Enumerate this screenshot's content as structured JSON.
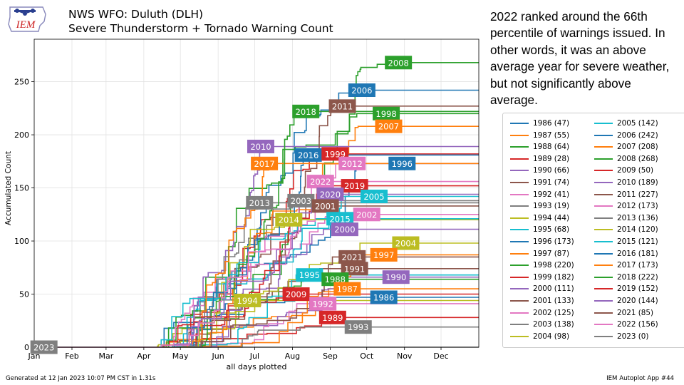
{
  "header": {
    "logo_text": "IEM",
    "title_line1": "NWS WFO: Duluth (DLH)",
    "title_line2": "Severe Thunderstorm + Tornado Warning Count"
  },
  "commentary": "2022 ranked around the 66th percentile of warnings issued. In other words, it was an above average year for severe weather, but not significantly above average.",
  "footer": {
    "generated": "Generated at 12 Jan 2023 10:07 PM CST in 1.31s",
    "app": "IEM Autoplot App #44"
  },
  "chart_data": {
    "type": "line",
    "title": "NWS WFO: Duluth (DLH) Severe Thunderstorm + Tornado Warning Count",
    "xlabel": "all days plotted",
    "ylabel": "Accumulated Count",
    "x_ticks": [
      "Jan",
      "Feb",
      "Mar",
      "Apr",
      "May",
      "Jun",
      "Jul",
      "Aug",
      "Sep",
      "Oct",
      "Nov",
      "Dec"
    ],
    "y_ticks": [
      0,
      50,
      100,
      150,
      200,
      250
    ],
    "ylim": [
      0,
      290
    ],
    "xlim_doy": [
      1,
      366
    ],
    "grid": true,
    "legend_position": "right",
    "series": [
      {
        "year": 1986,
        "label": "1986 (47)",
        "total": 47,
        "color": "#1f77b4",
        "end_doy": 230
      },
      {
        "year": 1987,
        "label": "1987 (55)",
        "total": 55,
        "color": "#ff7f0e",
        "end_doy": 244
      },
      {
        "year": 1988,
        "label": "1988 (64)",
        "total": 64,
        "color": "#2ca02c",
        "end_doy": 240
      },
      {
        "year": 1989,
        "label": "1989 (28)",
        "total": 28,
        "color": "#d62728",
        "end_doy": 250
      },
      {
        "year": 1990,
        "label": "1990 (66)",
        "total": 66,
        "color": "#9467bd",
        "end_doy": 268
      },
      {
        "year": 1991,
        "label": "1991 (74)",
        "total": 74,
        "color": "#8c564b",
        "end_doy": 236
      },
      {
        "year": 1992,
        "label": "1992 (41)",
        "total": 41,
        "color": "#e377c2",
        "end_doy": 230
      },
      {
        "year": 1993,
        "label": "1993 (19)",
        "total": 19,
        "color": "#7f7f7f",
        "end_doy": 258
      },
      {
        "year": 1994,
        "label": "1994 (44)",
        "total": 44,
        "color": "#bcbd22",
        "end_doy": 175
      },
      {
        "year": 1995,
        "label": "1995 (68)",
        "total": 68,
        "color": "#17becf",
        "end_doy": 222
      },
      {
        "year": 1996,
        "label": "1996 (173)",
        "total": 173,
        "color": "#1f77b4",
        "end_doy": 268
      },
      {
        "year": 1997,
        "label": "1997 (87)",
        "total": 87,
        "color": "#ff7f0e",
        "end_doy": 277
      },
      {
        "year": 1998,
        "label": "1998 (220)",
        "total": 220,
        "color": "#2ca02c",
        "end_doy": 268
      },
      {
        "year": 1999,
        "label": "1999 (182)",
        "total": 182,
        "color": "#d62728",
        "end_doy": 240
      },
      {
        "year": 2000,
        "label": "2000 (111)",
        "total": 111,
        "color": "#9467bd",
        "end_doy": 240
      },
      {
        "year": 2001,
        "label": "2001 (133)",
        "total": 133,
        "color": "#8c564b",
        "end_doy": 228
      },
      {
        "year": 2002,
        "label": "2002 (125)",
        "total": 125,
        "color": "#e377c2",
        "end_doy": 258
      },
      {
        "year": 2003,
        "label": "2003 (138)",
        "total": 138,
        "color": "#7f7f7f",
        "end_doy": 222
      },
      {
        "year": 2004,
        "label": "2004 (98)",
        "total": 98,
        "color": "#bcbd22",
        "end_doy": 285
      },
      {
        "year": 2005,
        "label": "2005 (142)",
        "total": 142,
        "color": "#17becf",
        "end_doy": 258
      },
      {
        "year": 2006,
        "label": "2006 (242)",
        "total": 242,
        "color": "#1f77b4",
        "end_doy": 262
      },
      {
        "year": 2007,
        "label": "2007 (208)",
        "total": 208,
        "color": "#ff7f0e",
        "end_doy": 270
      },
      {
        "year": 2008,
        "label": "2008 (268)",
        "total": 268,
        "color": "#2ca02c",
        "end_doy": 296
      },
      {
        "year": 2009,
        "label": "2009 (50)",
        "total": 50,
        "color": "#d62728",
        "end_doy": 210
      },
      {
        "year": 2010,
        "label": "2010 (189)",
        "total": 189,
        "color": "#9467bd",
        "end_doy": 188
      },
      {
        "year": 2011,
        "label": "2011 (227)",
        "total": 227,
        "color": "#8c564b",
        "end_doy": 250
      },
      {
        "year": 2012,
        "label": "2012 (173)",
        "total": 173,
        "color": "#e377c2",
        "end_doy": 256
      },
      {
        "year": 2013,
        "label": "2013 (136)",
        "total": 136,
        "color": "#7f7f7f",
        "end_doy": 186
      },
      {
        "year": 2014,
        "label": "2014 (120)",
        "total": 120,
        "color": "#bcbd22",
        "end_doy": 210
      },
      {
        "year": 2015,
        "label": "2015 (121)",
        "total": 121,
        "color": "#17becf",
        "end_doy": 236
      },
      {
        "year": 2016,
        "label": "2016 (181)",
        "total": 181,
        "color": "#1f77b4",
        "end_doy": 222
      },
      {
        "year": 2017,
        "label": "2017 (173)",
        "total": 173,
        "color": "#ff7f0e",
        "end_doy": 196
      },
      {
        "year": 2018,
        "label": "2018 (222)",
        "total": 222,
        "color": "#2ca02c",
        "end_doy": 216
      },
      {
        "year": 2019,
        "label": "2019 (152)",
        "total": 152,
        "color": "#d62728",
        "end_doy": 244
      },
      {
        "year": 2020,
        "label": "2020 (144)",
        "total": 144,
        "color": "#9467bd",
        "end_doy": 236
      },
      {
        "year": 2021,
        "label": "2021 (85)",
        "total": 85,
        "color": "#8c564b",
        "end_doy": 248
      },
      {
        "year": 2022,
        "label": "2022 (156)",
        "total": 156,
        "color": "#e377c2",
        "end_doy": 236
      },
      {
        "year": 2023,
        "label": "2023 (0)",
        "total": 0,
        "color": "#7f7f7f",
        "end_doy": 1
      }
    ],
    "annotations": [
      {
        "text": "2008",
        "doy": 300,
        "y": 268,
        "color": "#2ca02c"
      },
      {
        "text": "2006",
        "doy": 270,
        "y": 242,
        "color": "#1f77b4"
      },
      {
        "text": "2011",
        "doy": 254,
        "y": 227,
        "color": "#8c564b"
      },
      {
        "text": "2018",
        "doy": 224,
        "y": 222,
        "color": "#2ca02c"
      },
      {
        "text": "1998",
        "doy": 290,
        "y": 220,
        "color": "#2ca02c"
      },
      {
        "text": "2007",
        "doy": 292,
        "y": 208,
        "color": "#ff7f0e"
      },
      {
        "text": "2010",
        "doy": 187,
        "y": 189,
        "color": "#9467bd"
      },
      {
        "text": "2016",
        "doy": 226,
        "y": 181,
        "color": "#1f77b4"
      },
      {
        "text": "1999",
        "doy": 248,
        "y": 182,
        "color": "#d62728"
      },
      {
        "text": "2017",
        "doy": 190,
        "y": 173,
        "color": "#ff7f0e"
      },
      {
        "text": "2012",
        "doy": 262,
        "y": 173,
        "color": "#e377c2"
      },
      {
        "text": "1996",
        "doy": 303,
        "y": 173,
        "color": "#1f77b4"
      },
      {
        "text": "2022",
        "doy": 236,
        "y": 156,
        "color": "#e377c2"
      },
      {
        "text": "2019",
        "doy": 264,
        "y": 152,
        "color": "#d62728"
      },
      {
        "text": "2020",
        "doy": 244,
        "y": 144,
        "color": "#9467bd"
      },
      {
        "text": "2005",
        "doy": 280,
        "y": 142,
        "color": "#17becf"
      },
      {
        "text": "2013",
        "doy": 186,
        "y": 136,
        "color": "#7f7f7f"
      },
      {
        "text": "2003",
        "doy": 220,
        "y": 138,
        "color": "#7f7f7f"
      },
      {
        "text": "2001",
        "doy": 240,
        "y": 133,
        "color": "#8c564b"
      },
      {
        "text": "2002",
        "doy": 274,
        "y": 125,
        "color": "#e377c2"
      },
      {
        "text": "2014",
        "doy": 210,
        "y": 120,
        "color": "#bcbd22"
      },
      {
        "text": "2015",
        "doy": 252,
        "y": 121,
        "color": "#17becf"
      },
      {
        "text": "2000",
        "doy": 256,
        "y": 111,
        "color": "#9467bd"
      },
      {
        "text": "2004",
        "doy": 306,
        "y": 98,
        "color": "#bcbd22"
      },
      {
        "text": "2021",
        "doy": 262,
        "y": 85,
        "color": "#8c564b"
      },
      {
        "text": "1997",
        "doy": 288,
        "y": 87,
        "color": "#ff7f0e"
      },
      {
        "text": "1991",
        "doy": 264,
        "y": 74,
        "color": "#8c564b"
      },
      {
        "text": "1995",
        "doy": 227,
        "y": 68,
        "color": "#17becf"
      },
      {
        "text": "1990",
        "doy": 298,
        "y": 66,
        "color": "#9467bd"
      },
      {
        "text": "1988",
        "doy": 248,
        "y": 64,
        "color": "#2ca02c"
      },
      {
        "text": "1987",
        "doy": 258,
        "y": 55,
        "color": "#ff7f0e"
      },
      {
        "text": "2009",
        "doy": 216,
        "y": 50,
        "color": "#d62728"
      },
      {
        "text": "1986",
        "doy": 288,
        "y": 47,
        "color": "#1f77b4"
      },
      {
        "text": "1994",
        "doy": 176,
        "y": 44,
        "color": "#bcbd22"
      },
      {
        "text": "1992",
        "doy": 238,
        "y": 41,
        "color": "#e377c2"
      },
      {
        "text": "1989",
        "doy": 246,
        "y": 28,
        "color": "#d62728"
      },
      {
        "text": "1993",
        "doy": 267,
        "y": 19,
        "color": "#7f7f7f"
      },
      {
        "text": "2023",
        "doy": 9,
        "y": 0,
        "color": "#7f7f7f"
      }
    ]
  }
}
